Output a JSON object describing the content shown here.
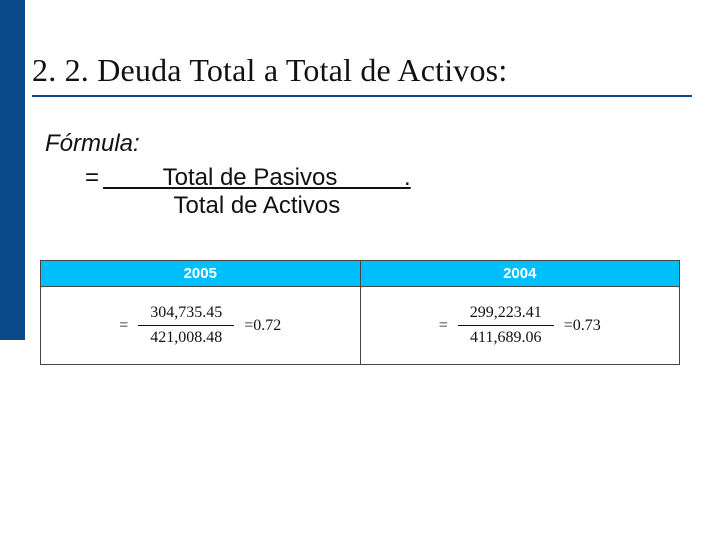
{
  "slide": {
    "accent_bar_color": "#0a4a8a",
    "title": "2. 2. Deuda Total a Total de Activos:",
    "title_underline_color": "#0a4a8a",
    "title_fontsize": 32,
    "formula": {
      "label": "Fórmula:",
      "label_italic": true,
      "eq": "=",
      "numerator": "         Total de Pasivos          .",
      "denominator": "Total de Activos",
      "fontsize": 24
    },
    "table": {
      "header_bg": "#00bfff",
      "header_fg": "#ffffff",
      "border_color": "#444444",
      "columns": [
        {
          "year": "2005",
          "numerator": "304,735.45",
          "denominator": "421,008.48",
          "result": "=0.72"
        },
        {
          "year": "2004",
          "numerator": "299,223.41",
          "denominator": "411,689.06",
          "result": "=0.73"
        }
      ],
      "number_fontsize": 16
    }
  }
}
